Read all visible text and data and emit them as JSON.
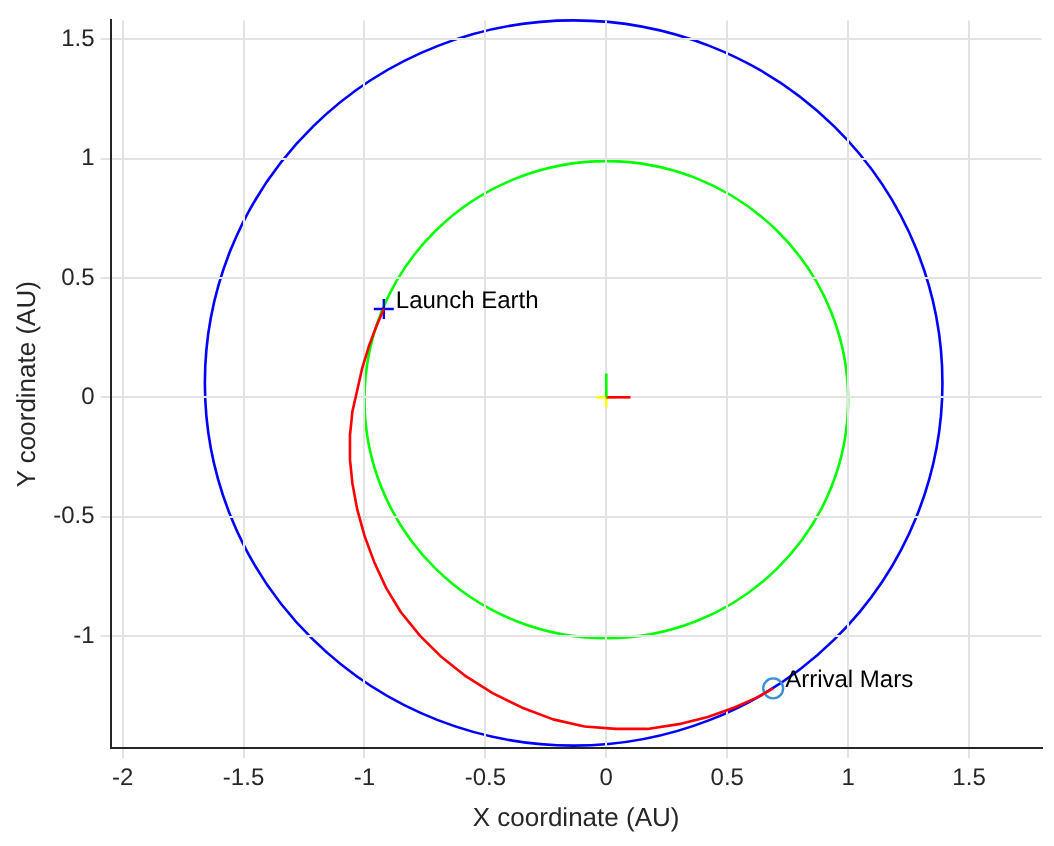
{
  "chart_data": {
    "type": "line",
    "xlabel": "X coordinate (AU)",
    "ylabel": "Y coordinate (AU)",
    "xlim": [
      -2.05,
      1.8
    ],
    "ylim": [
      -1.47,
      1.58
    ],
    "xticks": [
      -2,
      -1.5,
      -1,
      -0.5,
      0,
      0.5,
      1,
      1.5
    ],
    "yticks": [
      -1,
      -0.5,
      0,
      0.5,
      1,
      1.5
    ],
    "grid": true,
    "legend": false,
    "series": [
      {
        "color": "#ff0000",
        "x": [
          -0.92,
          -0.95,
          -0.98,
          -1.01,
          -1.03,
          -1.05,
          -1.06,
          -1.06,
          -1.05,
          -1.03,
          -1.0,
          -0.96,
          -0.91,
          -0.85,
          -0.77,
          -0.68,
          -0.58,
          -0.47,
          -0.35,
          -0.22,
          -0.09,
          0.04,
          0.17,
          0.3,
          0.42,
          0.53,
          0.62,
          0.69
        ],
        "values": [
          0.37,
          0.3,
          0.22,
          0.12,
          0.03,
          -0.06,
          -0.16,
          -0.26,
          -0.36,
          -0.47,
          -0.58,
          -0.69,
          -0.8,
          -0.9,
          -1.0,
          -1.09,
          -1.17,
          -1.24,
          -1.3,
          -1.35,
          -1.38,
          -1.39,
          -1.39,
          -1.37,
          -1.34,
          -1.3,
          -1.26,
          -1.22
        ]
      },
      {
        "color": "#00ff00",
        "x": [
          0,
          0
        ],
        "values": [
          0,
          0.1
        ]
      },
      {
        "color": "#ff0000",
        "x": [
          0,
          0.1
        ],
        "values": [
          0,
          0
        ]
      },
      {
        "type": "scatter",
        "color": "#ffff00",
        "marker": "cross",
        "x": [
          0
        ],
        "values": [
          0
        ]
      },
      {
        "type": "scatter",
        "color": "#0000ff",
        "marker": "cross",
        "x": [
          -0.92
        ],
        "values": [
          0.37
        ]
      },
      {
        "type": "scatter",
        "color": "#3a8fd6",
        "marker": "circle",
        "x": [
          0.69
        ],
        "values": [
          -1.22
        ]
      }
    ],
    "annotations": [
      {
        "text": "Launch Earth",
        "x": -0.92,
        "y": 0.37
      },
      {
        "text": "Arrival Mars",
        "x": 0.69,
        "y": -1.22
      }
    ]
  }
}
